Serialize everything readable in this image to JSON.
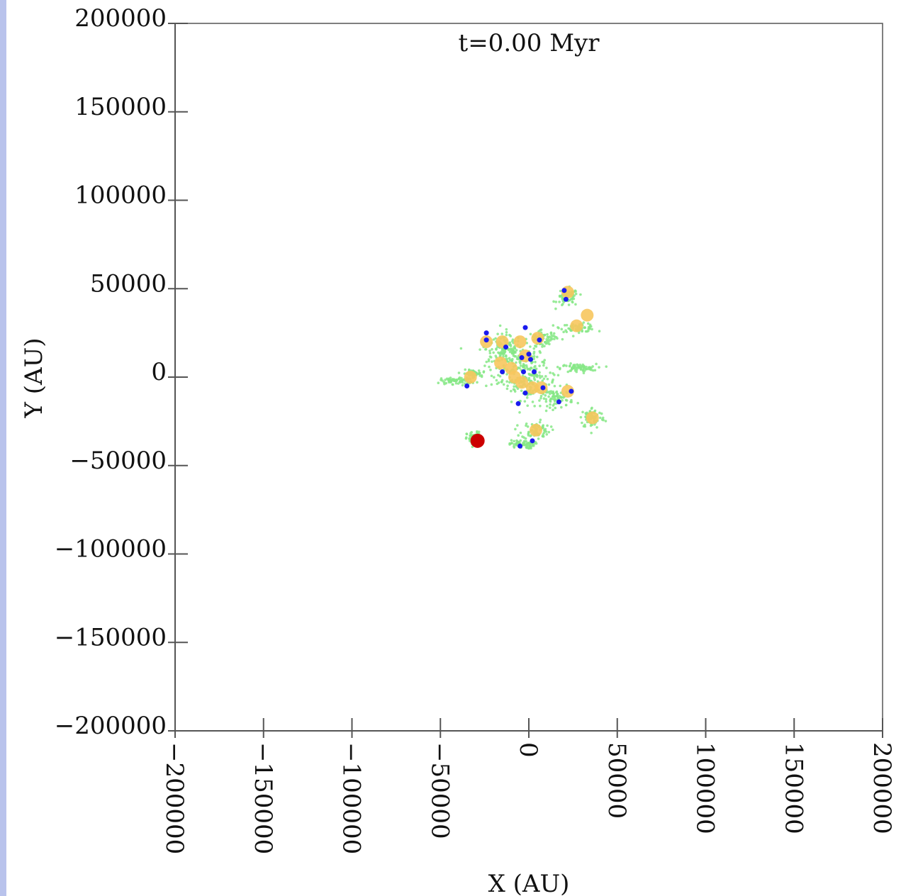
{
  "chart_data": {
    "type": "scatter",
    "annotation": "t=0.00 Myr",
    "xlabel": "X (AU)",
    "ylabel": "Y (AU)",
    "xlim": [
      -200000,
      200000
    ],
    "ylim": [
      -200000,
      200000
    ],
    "xticks": [
      -200000,
      -150000,
      -100000,
      -50000,
      0,
      50000,
      100000,
      150000,
      200000
    ],
    "xtick_labels": [
      "−200000",
      "−150000",
      "−100000",
      "−50000",
      "0",
      "50000",
      "100000",
      "150000",
      "200000"
    ],
    "yticks": [
      200000,
      150000,
      100000,
      50000,
      0,
      -50000,
      -100000,
      -150000,
      -200000
    ],
    "ytick_labels": [
      "200000",
      "150000",
      "100000",
      "50000",
      "0",
      "−50000",
      "−100000",
      "−150000",
      "−200000"
    ],
    "grid": false,
    "colors": {
      "gas": "#86e886",
      "star": "#f7c65e",
      "sink": "#1a1aee",
      "highlight": "#cc0000",
      "axis": "#555555"
    },
    "series": [
      {
        "marker": "gas-cloud",
        "clouds": [
          {
            "x": -7000,
            "y": 7000,
            "sx": 9000,
            "sy": 8000
          },
          {
            "x": 2000,
            "y": -3000,
            "sx": 7000,
            "sy": 5000
          },
          {
            "x": -14000,
            "y": 16000,
            "sx": 5000,
            "sy": 4000
          },
          {
            "x": 22000,
            "y": 45000,
            "sx": 3000,
            "sy": 2500
          },
          {
            "x": 28000,
            "y": 28000,
            "sx": 5000,
            "sy": 1200
          },
          {
            "x": 28000,
            "y": 5000,
            "sx": 5000,
            "sy": 1200
          },
          {
            "x": 36000,
            "y": -23000,
            "sx": 3500,
            "sy": 3000
          },
          {
            "x": 4000,
            "y": -30000,
            "sx": 4000,
            "sy": 2500
          },
          {
            "x": -4000,
            "y": -38000,
            "sx": 3500,
            "sy": 1200
          },
          {
            "x": -31000,
            "y": -35000,
            "sx": 2000,
            "sy": 2000
          },
          {
            "x": -40000,
            "y": -2000,
            "sx": 5000,
            "sy": 1000
          },
          {
            "x": -32000,
            "y": 2000,
            "sx": 2500,
            "sy": 1000
          },
          {
            "x": 16000,
            "y": -12000,
            "sx": 4500,
            "sy": 2500
          },
          {
            "x": 8000,
            "y": 22000,
            "sx": 4000,
            "sy": 2000
          }
        ]
      },
      {
        "marker": "star",
        "points": [
          [
            -24000,
            20000
          ],
          [
            -15000,
            20000
          ],
          [
            -16000,
            8000
          ],
          [
            -10000,
            5000
          ],
          [
            -8000,
            0
          ],
          [
            -4000,
            -3000
          ],
          [
            2000,
            -6000
          ],
          [
            7000,
            -6000
          ],
          [
            22000,
            -8000
          ],
          [
            27000,
            29000
          ],
          [
            33000,
            35000
          ],
          [
            36000,
            -23000
          ],
          [
            4000,
            -30000
          ],
          [
            -33000,
            0
          ],
          [
            22000,
            48000
          ],
          [
            -2000,
            12000
          ],
          [
            -5000,
            20000
          ],
          [
            5000,
            22000
          ]
        ]
      },
      {
        "marker": "sink",
        "points": [
          [
            -24000,
            25000
          ],
          [
            -24000,
            21000
          ],
          [
            -13000,
            17000
          ],
          [
            -2000,
            28000
          ],
          [
            6000,
            21000
          ],
          [
            0,
            13000
          ],
          [
            1000,
            10000
          ],
          [
            -4000,
            11000
          ],
          [
            -3000,
            3000
          ],
          [
            3000,
            3000
          ],
          [
            8000,
            -6000
          ],
          [
            -2000,
            -9000
          ],
          [
            -6000,
            -15000
          ],
          [
            -15000,
            3000
          ],
          [
            17000,
            -14000
          ],
          [
            24000,
            -8000
          ],
          [
            20000,
            49000
          ],
          [
            21000,
            44000
          ],
          [
            -35000,
            -5000
          ],
          [
            -5000,
            -39000
          ],
          [
            2000,
            -36000
          ]
        ]
      },
      {
        "marker": "highlight",
        "points": [
          [
            -29000,
            -36000
          ]
        ]
      }
    ]
  }
}
